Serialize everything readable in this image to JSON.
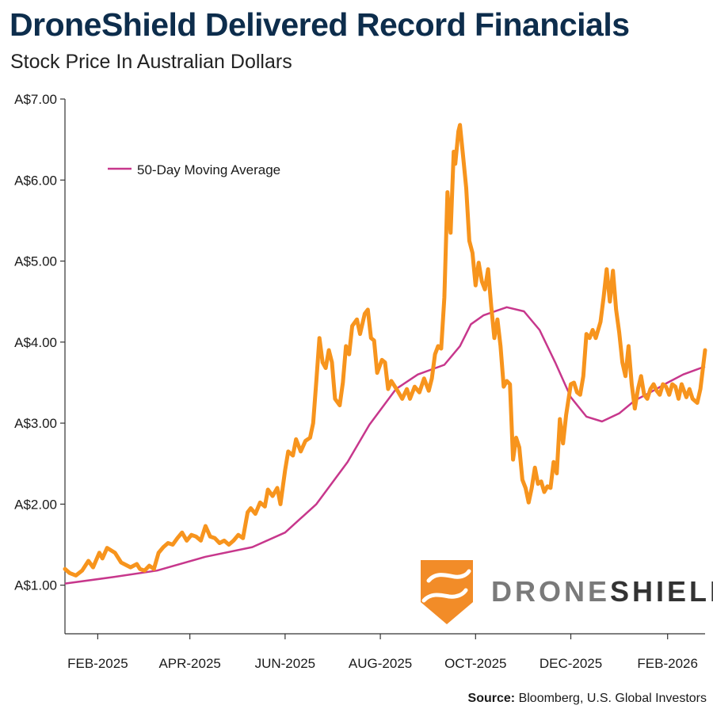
{
  "title": "DroneShield Delivered Record Financials",
  "subtitle": "Stock Price In Australian Dollars",
  "source_label": "Source:",
  "source_text": "Bloomberg, U.S. Global Investors",
  "logo": {
    "part1": "DRONE",
    "part2": "SHIELD",
    "color1": "#7a7a7a",
    "color2": "#333333",
    "shield_color": "#f28c28"
  },
  "colors": {
    "price": "#f7941d",
    "moving_average": "#c7378c",
    "axis": "#333333"
  },
  "chart_data": {
    "type": "line",
    "title": "DroneShield Delivered Record Financials",
    "subtitle": "Stock Price In Australian Dollars",
    "ylim": [
      0.4,
      7.0
    ],
    "y_ticks": [
      1.0,
      2.0,
      3.0,
      4.0,
      5.0,
      6.0,
      7.0
    ],
    "y_tick_labels": [
      "A$1.00",
      "A$2.00",
      "A$3.00",
      "A$4.00",
      "A$5.00",
      "A$6.00",
      "A$7.00"
    ],
    "x_range": [
      "2025-01-11",
      "2026-02-25"
    ],
    "x_tick_dates": [
      "2025-02-01",
      "2025-04-01",
      "2025-06-01",
      "2025-08-01",
      "2025-10-01",
      "2025-12-01",
      "2026-02-01"
    ],
    "x_tick_labels": [
      "FEB-2025",
      "APR-2025",
      "JUN-2025",
      "AUG-2025",
      "OCT-2025",
      "DEC-2025",
      "FEB-2026"
    ],
    "grid": false,
    "legend_placement": "top-left",
    "series": [
      {
        "key": "price",
        "points": [
          [
            "2025-01-11",
            1.2
          ],
          [
            "2025-01-14",
            1.15
          ],
          [
            "2025-01-18",
            1.12
          ],
          [
            "2025-01-22",
            1.18
          ],
          [
            "2025-01-26",
            1.3
          ],
          [
            "2025-01-29",
            1.22
          ],
          [
            "2025-02-02",
            1.4
          ],
          [
            "2025-02-04",
            1.33
          ],
          [
            "2025-02-07",
            1.46
          ],
          [
            "2025-02-12",
            1.4
          ],
          [
            "2025-02-16",
            1.28
          ],
          [
            "2025-02-19",
            1.25
          ],
          [
            "2025-02-22",
            1.22
          ],
          [
            "2025-02-26",
            1.26
          ],
          [
            "2025-02-28",
            1.2
          ],
          [
            "2025-03-03",
            1.18
          ],
          [
            "2025-03-06",
            1.24
          ],
          [
            "2025-03-09",
            1.2
          ],
          [
            "2025-03-12",
            1.4
          ],
          [
            "2025-03-15",
            1.47
          ],
          [
            "2025-03-18",
            1.52
          ],
          [
            "2025-03-21",
            1.5
          ],
          [
            "2025-03-24",
            1.58
          ],
          [
            "2025-03-27",
            1.65
          ],
          [
            "2025-03-30",
            1.55
          ],
          [
            "2025-04-02",
            1.62
          ],
          [
            "2025-04-05",
            1.6
          ],
          [
            "2025-04-08",
            1.55
          ],
          [
            "2025-04-11",
            1.73
          ],
          [
            "2025-04-14",
            1.6
          ],
          [
            "2025-04-17",
            1.58
          ],
          [
            "2025-04-20",
            1.52
          ],
          [
            "2025-04-23",
            1.55
          ],
          [
            "2025-04-26",
            1.5
          ],
          [
            "2025-04-29",
            1.55
          ],
          [
            "2025-05-02",
            1.62
          ],
          [
            "2025-05-05",
            1.58
          ],
          [
            "2025-05-08",
            1.9
          ],
          [
            "2025-05-10",
            1.95
          ],
          [
            "2025-05-13",
            1.88
          ],
          [
            "2025-05-16",
            2.02
          ],
          [
            "2025-05-19",
            1.97
          ],
          [
            "2025-05-21",
            2.18
          ],
          [
            "2025-05-24",
            2.1
          ],
          [
            "2025-05-27",
            2.2
          ],
          [
            "2025-05-29",
            2.0
          ],
          [
            "2025-06-01",
            2.42
          ],
          [
            "2025-06-03",
            2.65
          ],
          [
            "2025-06-06",
            2.6
          ],
          [
            "2025-06-08",
            2.8
          ],
          [
            "2025-06-11",
            2.65
          ],
          [
            "2025-06-14",
            2.78
          ],
          [
            "2025-06-17",
            2.82
          ],
          [
            "2025-06-19",
            3.0
          ],
          [
            "2025-06-21",
            3.52
          ],
          [
            "2025-06-23",
            4.05
          ],
          [
            "2025-06-25",
            3.75
          ],
          [
            "2025-06-27",
            3.68
          ],
          [
            "2025-06-29",
            3.9
          ],
          [
            "2025-07-01",
            3.75
          ],
          [
            "2025-07-03",
            3.3
          ],
          [
            "2025-07-06",
            3.22
          ],
          [
            "2025-07-08",
            3.5
          ],
          [
            "2025-07-10",
            3.95
          ],
          [
            "2025-07-12",
            3.85
          ],
          [
            "2025-07-14",
            4.2
          ],
          [
            "2025-07-17",
            4.28
          ],
          [
            "2025-07-19",
            4.1
          ],
          [
            "2025-07-22",
            4.35
          ],
          [
            "2025-07-24",
            4.4
          ],
          [
            "2025-07-26",
            4.05
          ],
          [
            "2025-07-28",
            4.02
          ],
          [
            "2025-07-30",
            3.62
          ],
          [
            "2025-08-02",
            3.78
          ],
          [
            "2025-08-04",
            3.75
          ],
          [
            "2025-08-06",
            3.42
          ],
          [
            "2025-08-08",
            3.52
          ],
          [
            "2025-08-12",
            3.4
          ],
          [
            "2025-08-15",
            3.3
          ],
          [
            "2025-08-18",
            3.42
          ],
          [
            "2025-08-20",
            3.3
          ],
          [
            "2025-08-23",
            3.45
          ],
          [
            "2025-08-26",
            3.38
          ],
          [
            "2025-08-29",
            3.55
          ],
          [
            "2025-09-01",
            3.4
          ],
          [
            "2025-09-03",
            3.55
          ],
          [
            "2025-09-05",
            3.85
          ],
          [
            "2025-09-07",
            3.95
          ],
          [
            "2025-09-09",
            3.92
          ],
          [
            "2025-09-11",
            4.55
          ],
          [
            "2025-09-13",
            5.85
          ],
          [
            "2025-09-15",
            5.35
          ],
          [
            "2025-09-17",
            6.35
          ],
          [
            "2025-09-18",
            6.2
          ],
          [
            "2025-09-20",
            6.6
          ],
          [
            "2025-09-21",
            6.68
          ],
          [
            "2025-09-23",
            6.3
          ],
          [
            "2025-09-25",
            5.9
          ],
          [
            "2025-09-27",
            5.25
          ],
          [
            "2025-09-29",
            5.1
          ],
          [
            "2025-10-01",
            4.7
          ],
          [
            "2025-10-03",
            4.98
          ],
          [
            "2025-10-05",
            4.75
          ],
          [
            "2025-10-07",
            4.65
          ],
          [
            "2025-10-09",
            4.9
          ],
          [
            "2025-10-11",
            4.45
          ],
          [
            "2025-10-13",
            4.05
          ],
          [
            "2025-10-15",
            4.28
          ],
          [
            "2025-10-17",
            3.95
          ],
          [
            "2025-10-19",
            3.45
          ],
          [
            "2025-10-21",
            3.52
          ],
          [
            "2025-10-23",
            3.48
          ],
          [
            "2025-10-25",
            2.55
          ],
          [
            "2025-10-27",
            2.82
          ],
          [
            "2025-10-29",
            2.7
          ],
          [
            "2025-10-31",
            2.3
          ],
          [
            "2025-11-02",
            2.2
          ],
          [
            "2025-11-04",
            2.02
          ],
          [
            "2025-11-06",
            2.2
          ],
          [
            "2025-11-08",
            2.45
          ],
          [
            "2025-11-10",
            2.25
          ],
          [
            "2025-11-12",
            2.28
          ],
          [
            "2025-11-14",
            2.15
          ],
          [
            "2025-11-16",
            2.22
          ],
          [
            "2025-11-18",
            2.2
          ],
          [
            "2025-11-20",
            2.52
          ],
          [
            "2025-11-22",
            2.38
          ],
          [
            "2025-11-24",
            3.05
          ],
          [
            "2025-11-26",
            2.75
          ],
          [
            "2025-11-28",
            3.1
          ],
          [
            "2025-12-01",
            3.48
          ],
          [
            "2025-12-03",
            3.5
          ],
          [
            "2025-12-05",
            3.38
          ],
          [
            "2025-12-07",
            3.35
          ],
          [
            "2025-12-09",
            3.58
          ],
          [
            "2025-12-11",
            4.1
          ],
          [
            "2025-12-13",
            4.05
          ],
          [
            "2025-12-15",
            4.15
          ],
          [
            "2025-12-17",
            4.05
          ],
          [
            "2025-12-20",
            4.25
          ],
          [
            "2025-12-22",
            4.55
          ],
          [
            "2025-12-24",
            4.9
          ],
          [
            "2025-12-26",
            4.5
          ],
          [
            "2025-12-28",
            4.88
          ],
          [
            "2025-12-30",
            4.4
          ],
          [
            "2026-01-01",
            4.12
          ],
          [
            "2026-01-03",
            3.75
          ],
          [
            "2026-01-05",
            3.58
          ],
          [
            "2026-01-07",
            3.95
          ],
          [
            "2026-01-09",
            3.48
          ],
          [
            "2026-01-11",
            3.18
          ],
          [
            "2026-01-13",
            3.42
          ],
          [
            "2026-01-15",
            3.58
          ],
          [
            "2026-01-17",
            3.35
          ],
          [
            "2026-01-19",
            3.3
          ],
          [
            "2026-01-21",
            3.42
          ],
          [
            "2026-01-23",
            3.48
          ],
          [
            "2026-01-25",
            3.4
          ],
          [
            "2026-01-27",
            3.35
          ],
          [
            "2026-01-29",
            3.48
          ],
          [
            "2026-01-31",
            3.45
          ],
          [
            "2026-02-02",
            3.35
          ],
          [
            "2026-02-04",
            3.48
          ],
          [
            "2026-02-06",
            3.45
          ],
          [
            "2026-02-08",
            3.3
          ],
          [
            "2026-02-10",
            3.48
          ],
          [
            "2026-02-13",
            3.32
          ],
          [
            "2026-02-15",
            3.42
          ],
          [
            "2026-02-17",
            3.3
          ],
          [
            "2026-02-20",
            3.25
          ],
          [
            "2026-02-22",
            3.42
          ],
          [
            "2026-02-25",
            3.9
          ]
        ]
      },
      {
        "key": "moving_average",
        "name": "50-Day Moving Average",
        "points": [
          [
            "2025-01-11",
            1.02
          ],
          [
            "2025-02-11",
            1.1
          ],
          [
            "2025-03-11",
            1.18
          ],
          [
            "2025-04-11",
            1.35
          ],
          [
            "2025-05-11",
            1.47
          ],
          [
            "2025-06-01",
            1.65
          ],
          [
            "2025-06-21",
            2.0
          ],
          [
            "2025-07-11",
            2.52
          ],
          [
            "2025-07-25",
            2.98
          ],
          [
            "2025-08-11",
            3.42
          ],
          [
            "2025-08-25",
            3.6
          ],
          [
            "2025-09-11",
            3.72
          ],
          [
            "2025-09-21",
            3.95
          ],
          [
            "2025-09-28",
            4.22
          ],
          [
            "2025-10-06",
            4.33
          ],
          [
            "2025-10-21",
            4.43
          ],
          [
            "2025-11-01",
            4.38
          ],
          [
            "2025-11-11",
            4.15
          ],
          [
            "2025-11-21",
            3.75
          ],
          [
            "2025-12-01",
            3.32
          ],
          [
            "2025-12-11",
            3.08
          ],
          [
            "2025-12-21",
            3.02
          ],
          [
            "2026-01-01",
            3.12
          ],
          [
            "2026-01-11",
            3.28
          ],
          [
            "2026-01-21",
            3.38
          ],
          [
            "2026-02-01",
            3.5
          ],
          [
            "2026-02-11",
            3.6
          ],
          [
            "2026-02-25",
            3.7
          ]
        ]
      }
    ]
  }
}
